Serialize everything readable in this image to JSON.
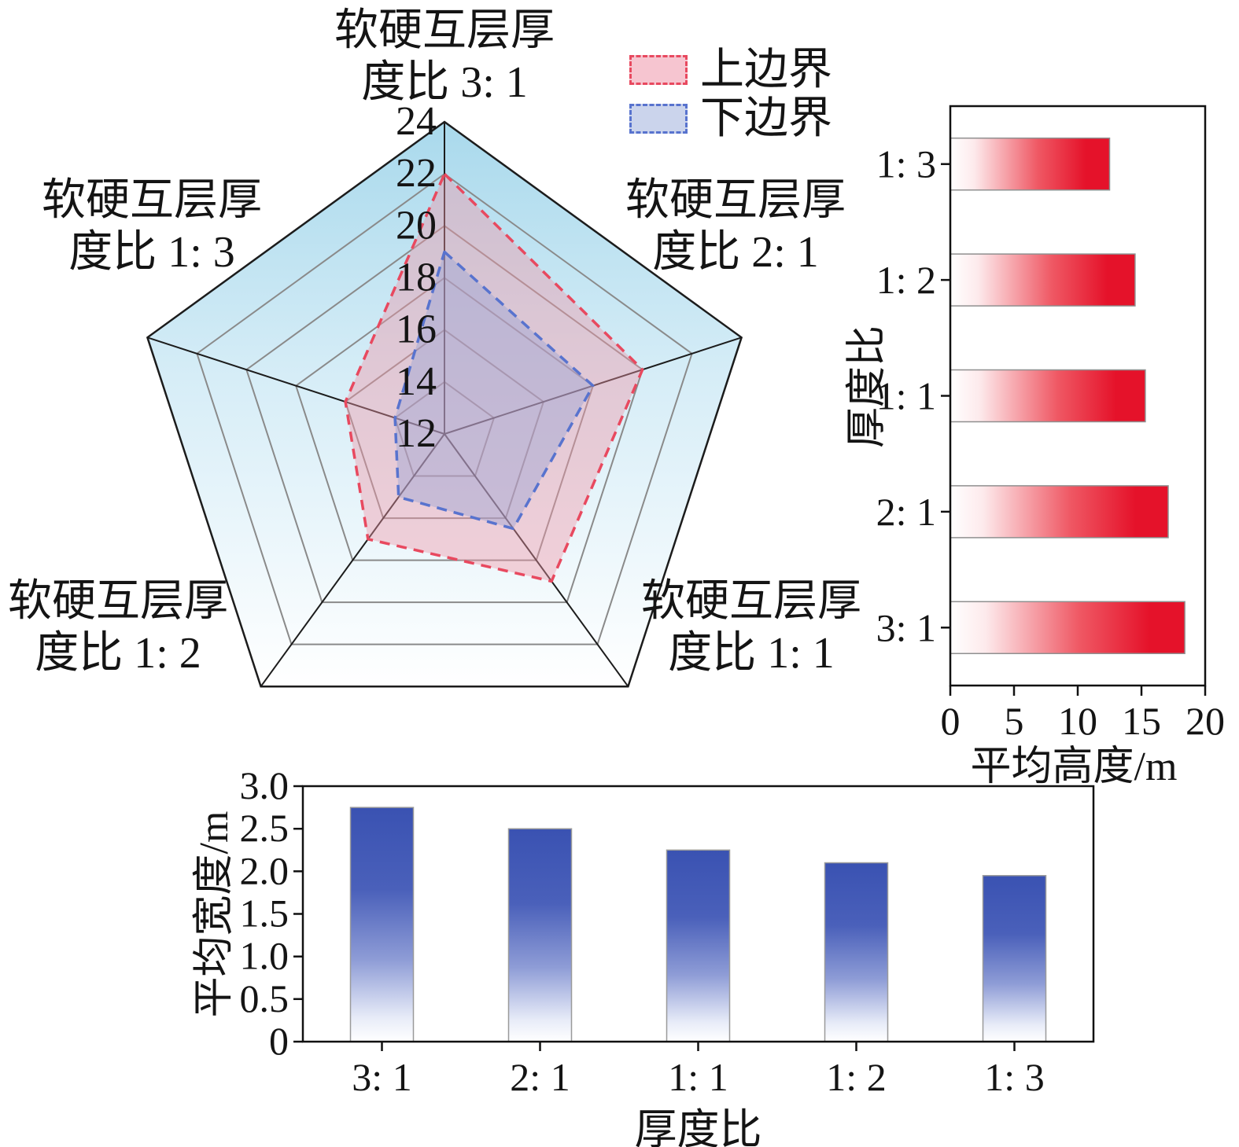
{
  "chart_data": [
    {
      "type": "radar",
      "axes": [
        {
          "line1": "软硬互层厚",
          "line2": "度比 3: 1"
        },
        {
          "line1": "软硬互层厚",
          "line2": "度比 2: 1"
        },
        {
          "line1": "软硬互层厚",
          "line2": "度比 1: 1"
        },
        {
          "line1": "软硬互层厚",
          "line2": "度比 1: 2"
        },
        {
          "line1": "软硬互层厚",
          "line2": "度比 1: 3"
        }
      ],
      "radial_min": 12,
      "radial_max": 24,
      "radial_ticks": [
        12,
        14,
        16,
        18,
        20,
        22,
        24
      ],
      "background_top_color": "#a9d9ec",
      "grid": true,
      "legend_position": "top-right",
      "series": [
        {
          "name": "上边界",
          "color": "#e8495f",
          "fill": "rgba(240,150,166,0.42)",
          "values": [
            22,
            20,
            19,
            17,
            16
          ]
        },
        {
          "name": "下边界",
          "color": "#5873ce",
          "fill": "rgba(150,162,212,0.42)",
          "values": [
            19,
            18,
            16.5,
            15,
            14
          ]
        }
      ]
    },
    {
      "type": "bar-horizontal",
      "categories": [
        "1: 3",
        "1: 2",
        "1: 1",
        "2: 1",
        "3: 1"
      ],
      "values": [
        12.5,
        14.5,
        15.3,
        17.1,
        18.4
      ],
      "xlabel": "平均高度/m",
      "ylabel": "厚度比",
      "xticks": [
        0,
        5,
        10,
        15,
        20
      ],
      "xlim": [
        0,
        20
      ],
      "bar_color_start": "#ffffff",
      "bar_color_end": "#e5122a"
    },
    {
      "type": "bar",
      "categories": [
        "3: 1",
        "2: 1",
        "1: 1",
        "1: 2",
        "1: 3"
      ],
      "values": [
        2.75,
        2.5,
        2.25,
        2.1,
        1.95
      ],
      "xlabel": "厚度比",
      "ylabel": "平均宽度/m",
      "ytick_labels": [
        "0",
        "0.5",
        "1.0",
        "1.5",
        "2.0",
        "2.5",
        "3.0"
      ],
      "ylim": [
        0,
        3
      ],
      "bar_color_top": "#3a52b2",
      "bar_color_bottom": "#ffffff"
    }
  ]
}
